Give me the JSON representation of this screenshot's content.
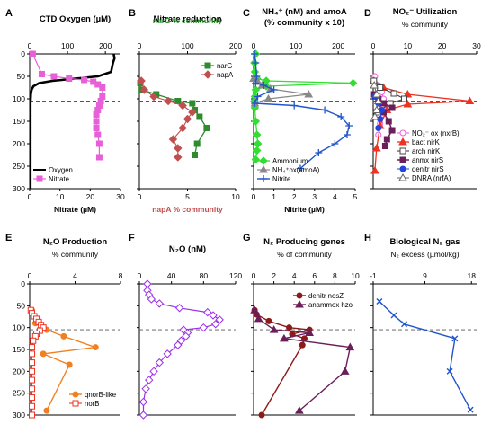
{
  "figure": {
    "y_ticks": [
      0,
      50,
      100,
      150,
      200,
      250,
      300
    ]
  },
  "chart_data": [
    {
      "id": "A",
      "type": "line",
      "letter": "A",
      "title": "CTD Oxygen (µM)",
      "top_axis": {
        "label": "",
        "ticks": [
          0,
          100,
          200
        ],
        "range": [
          0,
          240
        ],
        "color": "#000000"
      },
      "bottom_axis": {
        "label": "Nitrate (µM)",
        "ticks": [
          0,
          10,
          20,
          30
        ],
        "range": [
          0,
          30
        ],
        "color": "#000000"
      },
      "ylim": [
        0,
        300
      ],
      "hline": 105,
      "y_ticks_visible": true,
      "legend": {
        "position": "bottom-left",
        "entries": [
          {
            "series": 0,
            "label": "Oxygen"
          },
          {
            "series": 1,
            "label": "Nitrate"
          }
        ]
      },
      "series": [
        {
          "name": "Oxygen",
          "axis": "top",
          "color": "#000000",
          "marker": "none",
          "width": 2.6,
          "x": [
            222,
            224,
            220,
            215,
            180,
            120,
            60,
            25,
            10,
            5,
            3,
            2,
            2,
            2,
            2
          ],
          "y": [
            0,
            10,
            20,
            40,
            50,
            55,
            60,
            65,
            72,
            80,
            90,
            110,
            150,
            220,
            300
          ]
        },
        {
          "name": "Nitrate",
          "axis": "bottom",
          "color": "#e860d8",
          "marker": "square",
          "width": 1.2,
          "x": [
            1,
            4,
            8,
            13,
            18,
            21,
            22.5,
            24,
            24,
            23.5,
            23,
            22.5,
            22,
            22,
            22,
            22.5,
            23,
            23
          ],
          "y": [
            0,
            45,
            50,
            55,
            58,
            62,
            68,
            75,
            95,
            105,
            115,
            125,
            135,
            150,
            165,
            180,
            200,
            230
          ]
        }
      ]
    },
    {
      "id": "B",
      "type": "line",
      "letter": "B",
      "title": "Nitrate reduction",
      "top_axis": {
        "label": "narG % community",
        "ticks": [
          0,
          100,
          200
        ],
        "range": [
          0,
          200
        ],
        "color": "#2e8b2e"
      },
      "bottom_axis": {
        "label": "napA % community",
        "ticks": [
          0,
          5,
          10
        ],
        "range": [
          0,
          10
        ],
        "color": "#c05050"
      },
      "ylim": [
        0,
        300
      ],
      "hline": 105,
      "y_ticks_visible": false,
      "legend": {
        "position": "top-right",
        "entries": [
          {
            "series": 0,
            "label": "narG"
          },
          {
            "series": 1,
            "label": "napA"
          }
        ]
      },
      "series": [
        {
          "name": "narG",
          "axis": "top",
          "color": "#2e8b2e",
          "marker": "square",
          "width": 1.3,
          "x": [
            2,
            5,
            35,
            80,
            110,
            115,
            125,
            140,
            120,
            115
          ],
          "y": [
            65,
            80,
            90,
            105,
            110,
            125,
            140,
            165,
            200,
            225
          ]
        },
        {
          "name": "napA",
          "axis": "bottom",
          "color": "#c05050",
          "marker": "diamond",
          "width": 1.1,
          "x": [
            0.2,
            0.5,
            1.5,
            3,
            4.5,
            5.5,
            5,
            4.5,
            3.5,
            4,
            4
          ],
          "y": [
            60,
            80,
            95,
            105,
            115,
            130,
            145,
            165,
            190,
            210,
            230
          ]
        }
      ]
    },
    {
      "id": "C",
      "type": "line",
      "letter": "C",
      "title": "NH4+ (nM) and amoA (% community x 10)",
      "title_line1": "NH₄⁺ (nM) and amoA",
      "title_line2": "(% community x 10)",
      "top_axis": {
        "label": "",
        "ticks": [
          0,
          100,
          200
        ],
        "range": [
          0,
          240
        ],
        "color": "#000000"
      },
      "bottom_axis": {
        "label": "Nitrite (µM)",
        "ticks": [
          0,
          1,
          2,
          3,
          4,
          5
        ],
        "range": [
          0,
          5
        ],
        "color": "#000000"
      },
      "ylim": [
        0,
        300
      ],
      "hline": 105,
      "y_ticks_visible": false,
      "legend": {
        "position": "bottom-left",
        "entries": [
          {
            "series": 0,
            "label": "Ammonium"
          },
          {
            "series": 1,
            "label": "NH₄⁺ox(amoA)"
          },
          {
            "series": 2,
            "label": "Nitrite"
          }
        ]
      },
      "series": [
        {
          "name": "Ammonium",
          "axis": "top",
          "color": "#33dd33",
          "marker": "diamond",
          "width": 1.3,
          "x": [
            5,
            2,
            3,
            8,
            30,
            235,
            30,
            5,
            3,
            2,
            3,
            5,
            8,
            10,
            8,
            5
          ],
          "y": [
            0,
            20,
            40,
            55,
            60,
            65,
            72,
            80,
            95,
            105,
            120,
            150,
            180,
            200,
            215,
            235
          ]
        },
        {
          "name": "NH₄⁺ox(amoA)",
          "axis": "top",
          "color": "#888888",
          "marker": "triangle",
          "width": 1.2,
          "x": [
            0,
            10,
            20,
            40,
            130,
            35,
            3
          ],
          "y": [
            55,
            62,
            70,
            78,
            90,
            100,
            110
          ]
        },
        {
          "name": "Nitrite",
          "axis": "bottom",
          "color": "#2255cc",
          "marker": "plus",
          "width": 1.4,
          "x": [
            0.05,
            0.1,
            0.15,
            0.1,
            0.5,
            1.0,
            0.2,
            0.05,
            2,
            3.5,
            4.3,
            4.7,
            4.6,
            4.0,
            3.2,
            2.3
          ],
          "y": [
            0,
            20,
            50,
            65,
            70,
            80,
            95,
            110,
            115,
            125,
            140,
            160,
            180,
            200,
            220,
            255
          ]
        }
      ]
    },
    {
      "id": "D",
      "type": "line",
      "letter": "D",
      "title": "NO2- Utilization",
      "title_html": "NO₂⁻ Utilization",
      "subtitle": "% community",
      "top_axis": {
        "label": "",
        "ticks": [
          0,
          10,
          20,
          30
        ],
        "range": [
          0,
          30
        ],
        "color": "#000000"
      },
      "bottom_axis": {
        "label": "",
        "ticks": [],
        "range": [
          0,
          30
        ],
        "color": "#000000"
      },
      "ylim": [
        0,
        300
      ],
      "hline": 105,
      "y_ticks_visible": false,
      "legend": {
        "position": "bottom-right",
        "entries": [
          {
            "series": 0,
            "label": "NO₂⁻ ox (nxrB)"
          },
          {
            "series": 1,
            "label": "bact nirK"
          },
          {
            "series": 2,
            "label": "arch nirK"
          },
          {
            "series": 3,
            "label": "anmx nirS"
          },
          {
            "series": 4,
            "label": "denitr nirS"
          },
          {
            "series": 5,
            "label": "DNRA (nrfA)"
          }
        ]
      },
      "series": [
        {
          "name": "NO₂⁻ ox (nxrB)",
          "axis": "top",
          "color": "#e860d8",
          "marker": "circle",
          "width": 1.1,
          "x": [
            0.5,
            1.5,
            2.5,
            3,
            3,
            2.5,
            2,
            1.5
          ],
          "y": [
            50,
            70,
            85,
            100,
            115,
            135,
            155,
            180
          ]
        },
        {
          "name": "bact nirK",
          "axis": "top",
          "color": "#ee3322",
          "marker": "triangle",
          "width": 1.3,
          "x": [
            0.2,
            3,
            10,
            28,
            10,
            4,
            2,
            1,
            0.5
          ],
          "y": [
            60,
            75,
            90,
            105,
            112,
            125,
            160,
            210,
            260
          ]
        },
        {
          "name": "arch nirK",
          "axis": "top",
          "color": "#444444",
          "marker": "square-open",
          "width": 1.1,
          "x": [
            0.2,
            2,
            6,
            9,
            5,
            1
          ],
          "y": [
            60,
            75,
            88,
            100,
            110,
            130
          ]
        },
        {
          "name": "anmx nirS",
          "axis": "top",
          "color": "#6b1f5a",
          "marker": "square",
          "width": 1.5,
          "x": [
            0.3,
            1.5,
            3,
            5.5,
            3,
            4.5,
            5.5,
            4,
            3.5
          ],
          "y": [
            90,
            100,
            110,
            120,
            130,
            150,
            170,
            190,
            205
          ]
        },
        {
          "name": "denitr nirS",
          "axis": "top",
          "color": "#2244dd",
          "marker": "circle-filled",
          "width": 1.0,
          "x": [
            0.5,
            1.5,
            2.5,
            2,
            1.5
          ],
          "y": [
            95,
            110,
            125,
            145,
            165
          ]
        },
        {
          "name": "DNRA (nrfA)",
          "axis": "top",
          "color": "#666666",
          "marker": "triangle-open",
          "width": 1.0,
          "x": [
            0.3,
            1,
            1.5,
            1,
            0.5
          ],
          "y": [
            70,
            90,
            105,
            125,
            140
          ]
        }
      ]
    },
    {
      "id": "E",
      "type": "line",
      "letter": "E",
      "title": "N2O Production",
      "title_html": "N₂O Production",
      "subtitle": "% community",
      "top_axis": {
        "label": "",
        "ticks": [
          0,
          4,
          8
        ],
        "range": [
          0,
          8
        ],
        "color": "#000000"
      },
      "bottom_axis": {
        "label": "",
        "ticks": [],
        "range": [
          0,
          8
        ],
        "color": "#000000"
      },
      "ylim": [
        0,
        300
      ],
      "hline": 105,
      "y_ticks_visible": true,
      "legend": {
        "position": "bottom-right",
        "entries": [
          {
            "series": 0,
            "label": "qnorB-like"
          },
          {
            "series": 1,
            "label": "norB"
          }
        ]
      },
      "series": [
        {
          "name": "qnorB-like",
          "axis": "top",
          "color": "#f08020",
          "marker": "circle-filled",
          "width": 1.4,
          "x": [
            0.2,
            0.5,
            1.5,
            3,
            5.8,
            1.2,
            3.5,
            1.5
          ],
          "y": [
            60,
            90,
            105,
            120,
            145,
            160,
            185,
            290
          ]
        },
        {
          "name": "norB",
          "axis": "top",
          "color": "#ee3322",
          "marker": "square-open",
          "width": 1.1,
          "x": [
            0.1,
            0.2,
            0.4,
            0.6,
            0.8,
            1.0,
            1.2,
            0.9,
            0.6,
            0.5,
            0.3,
            0.2,
            0.2,
            0.2,
            0.2,
            0.2,
            0.2,
            0.2,
            0.2,
            0.2
          ],
          "y": [
            60,
            67,
            74,
            80,
            87,
            94,
            100,
            107,
            114,
            120,
            130,
            145,
            160,
            180,
            200,
            220,
            240,
            260,
            280,
            300
          ]
        }
      ]
    },
    {
      "id": "F",
      "type": "line",
      "letter": "F",
      "title": "N2O (nM)",
      "title_html": "N₂O (nM)",
      "top_axis": {
        "label": "",
        "ticks": [
          0,
          40,
          80,
          120
        ],
        "range": [
          0,
          120
        ],
        "color": "#000000"
      },
      "bottom_axis": {
        "label": "",
        "ticks": [],
        "range": [
          0,
          120
        ],
        "color": "#000000"
      },
      "ylim": [
        0,
        300
      ],
      "hline": 105,
      "y_ticks_visible": false,
      "legend": null,
      "series": [
        {
          "name": "N₂O",
          "axis": "top",
          "color": "#9b30e8",
          "marker": "diamond-open",
          "width": 1.2,
          "x": [
            10,
            10,
            12,
            15,
            25,
            50,
            85,
            92,
            100,
            95,
            80,
            55,
            60,
            58,
            52,
            48,
            35,
            25,
            18,
            12,
            8,
            5,
            5
          ],
          "y": [
            0,
            15,
            25,
            35,
            45,
            55,
            65,
            72,
            82,
            92,
            100,
            105,
            112,
            120,
            130,
            140,
            160,
            180,
            200,
            220,
            240,
            270,
            300
          ]
        }
      ]
    },
    {
      "id": "G",
      "type": "line",
      "letter": "G",
      "title": "N2 Producing genes",
      "title_html": "N₂ Producing genes",
      "subtitle": "% of community",
      "top_axis": {
        "label": "",
        "ticks": [
          0,
          2,
          4,
          6,
          8,
          10
        ],
        "range": [
          0,
          10
        ],
        "color": "#000000"
      },
      "bottom_axis": {
        "label": "",
        "ticks": [],
        "range": [
          0,
          10
        ],
        "color": "#000000"
      },
      "ylim": [
        0,
        300
      ],
      "hline": 105,
      "y_ticks_visible": false,
      "legend": {
        "position": "top-right",
        "entries": [
          {
            "series": 0,
            "label": "denitr nosZ"
          },
          {
            "series": 1,
            "label": "anammox hzo"
          }
        ]
      },
      "series": [
        {
          "name": "denitr nosZ",
          "axis": "top",
          "color": "#8b1a1a",
          "marker": "circle-filled",
          "width": 1.4,
          "x": [
            0.1,
            0.3,
            1.5,
            3.5,
            5.5,
            3.8,
            5.0,
            4.8,
            0.8
          ],
          "y": [
            60,
            70,
            85,
            100,
            105,
            115,
            125,
            140,
            300
          ]
        },
        {
          "name": "anammox hzo",
          "axis": "top",
          "color": "#6b1f5a",
          "marker": "triangle",
          "width": 1.4,
          "x": [
            0.1,
            0.5,
            2,
            5.5,
            3,
            9.5,
            9.0,
            4.5
          ],
          "y": [
            60,
            80,
            105,
            112,
            125,
            145,
            200,
            290
          ]
        }
      ]
    },
    {
      "id": "H",
      "type": "line",
      "letter": "H",
      "title": "Biological N2 gas",
      "title_html": "Biological N₂ gas",
      "subtitle": "N₂ excess (µmol/kg)",
      "top_axis": {
        "label": "",
        "ticks": [
          -1,
          9,
          18
        ],
        "range": [
          -1,
          19
        ],
        "color": "#000000"
      },
      "bottom_axis": {
        "label": "",
        "ticks": [],
        "range": [
          -1,
          19
        ],
        "color": "#000000"
      },
      "ylim": [
        0,
        300
      ],
      "hline": 105,
      "y_ticks_visible": false,
      "legend": null,
      "series": [
        {
          "name": "N₂ excess",
          "axis": "top",
          "color": "#2255cc",
          "marker": "x",
          "width": 1.4,
          "x": [
            0.2,
            3,
            5,
            14.8,
            13.8,
            17.8
          ],
          "y": [
            40,
            72,
            92,
            125,
            200,
            288
          ]
        }
      ]
    }
  ]
}
